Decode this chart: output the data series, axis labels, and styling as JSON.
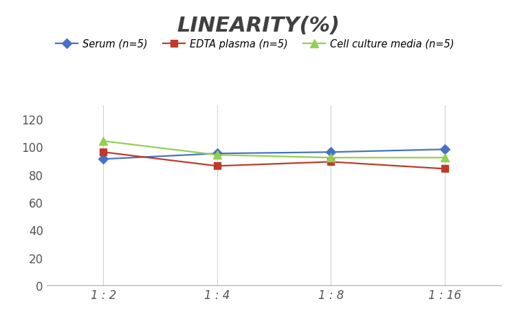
{
  "title": "LINEARITY(%)",
  "title_fontsize": 22,
  "title_fontstyle": "italic",
  "title_fontweight": "bold",
  "title_color": "#404040",
  "x_labels": [
    "1 : 2",
    "1 : 4",
    "1 : 8",
    "1 : 16"
  ],
  "x_positions": [
    0,
    1,
    2,
    3
  ],
  "series": [
    {
      "label": "Serum (n=5)",
      "color": "#4472C4",
      "marker": "D",
      "marker_size": 7,
      "values": [
        91,
        95,
        96,
        98
      ]
    },
    {
      "label": "EDTA plasma (n=5)",
      "color": "#C0392B",
      "marker": "s",
      "marker_size": 7,
      "values": [
        96,
        86,
        89,
        84
      ]
    },
    {
      "label": "Cell culture media (n=5)",
      "color": "#92D050",
      "marker": "^",
      "marker_size": 9,
      "values": [
        104,
        94,
        92,
        92
      ]
    }
  ],
  "ylim": [
    0,
    130
  ],
  "yticks": [
    0,
    20,
    40,
    60,
    80,
    100,
    120
  ],
  "background_color": "#ffffff",
  "grid_color": "#d0d0d0",
  "legend_fontsize": 10.5,
  "tick_fontsize": 12
}
